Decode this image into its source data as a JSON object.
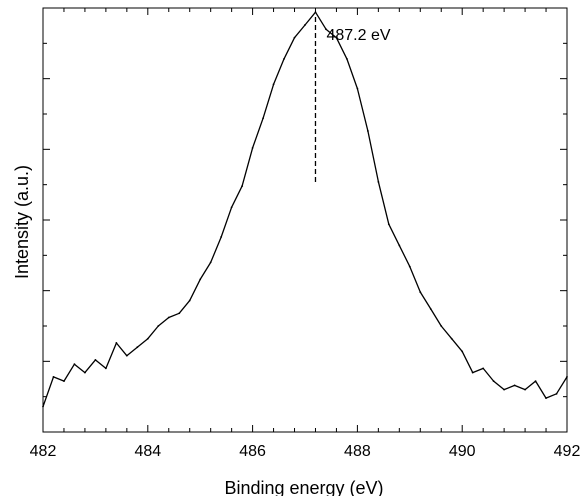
{
  "chart_data": {
    "type": "line",
    "title": "",
    "xlabel": "Binding energy (eV)",
    "ylabel": "Intensity (a.u.)",
    "xlim": [
      482,
      492
    ],
    "ylim": [
      0,
      1
    ],
    "x_ticks": [
      482,
      484,
      486,
      488,
      490,
      492
    ],
    "x_tick_labels": [
      "482",
      "484",
      "486",
      "488",
      "490",
      "492"
    ],
    "y_tick_labels_shown": false,
    "grid": false,
    "legend": "none",
    "series": [
      {
        "color": "#000000",
        "x": [
          482.0,
          482.2,
          482.4,
          482.6,
          482.8,
          483.0,
          483.2,
          483.4,
          483.6,
          483.8,
          484.0,
          484.2,
          484.4,
          484.6,
          484.8,
          485.0,
          485.2,
          485.4,
          485.6,
          485.8,
          486.0,
          486.2,
          486.4,
          486.6,
          486.8,
          487.0,
          487.2,
          487.4,
          487.6,
          487.8,
          488.0,
          488.2,
          488.4,
          488.6,
          488.8,
          489.0,
          489.2,
          489.4,
          489.6,
          489.8,
          490.0,
          490.2,
          490.4,
          490.6,
          490.8,
          491.0,
          491.2,
          491.4,
          491.6,
          491.8,
          492.0
        ],
        "y": [
          0.06,
          0.13,
          0.12,
          0.16,
          0.14,
          0.17,
          0.15,
          0.21,
          0.18,
          0.2,
          0.22,
          0.25,
          0.27,
          0.28,
          0.31,
          0.36,
          0.4,
          0.46,
          0.53,
          0.58,
          0.67,
          0.74,
          0.82,
          0.88,
          0.93,
          0.96,
          0.99,
          0.95,
          0.93,
          0.88,
          0.81,
          0.71,
          0.59,
          0.49,
          0.44,
          0.39,
          0.33,
          0.29,
          0.25,
          0.22,
          0.19,
          0.14,
          0.15,
          0.12,
          0.1,
          0.11,
          0.1,
          0.12,
          0.08,
          0.09,
          0.13
        ]
      }
    ],
    "annotations": [
      {
        "text": "487.2 eV",
        "x": 487.2,
        "style": "dashed vertical line"
      }
    ]
  }
}
